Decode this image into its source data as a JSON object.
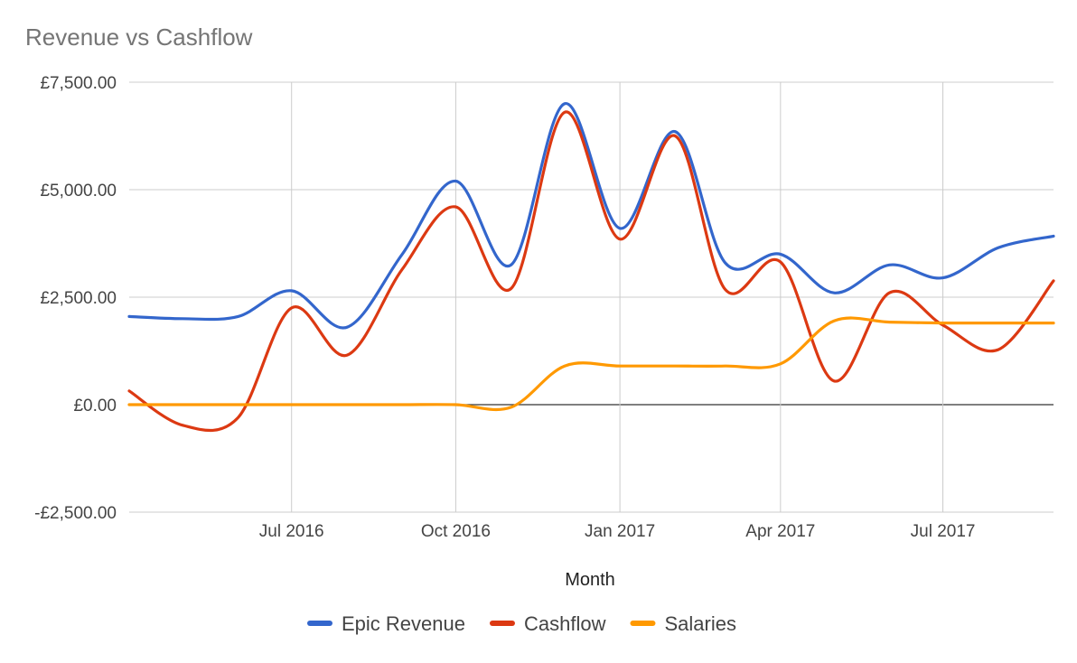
{
  "chart_data": {
    "type": "line",
    "title": "Revenue vs Cashflow",
    "xlabel": "Month",
    "ylabel": "",
    "ylim": [
      -2500,
      7500
    ],
    "y_ticks": [
      7500,
      5000,
      2500,
      0,
      -2500
    ],
    "y_tick_labels": [
      "£7,500.00",
      "£5,000.00",
      "£2,500.00",
      "£0.00",
      "-£2,500.00"
    ],
    "x_tick_labels": [
      {
        "x": "2016-07-01",
        "label": "Jul 2016"
      },
      {
        "x": "2016-10-01",
        "label": "Oct 2016"
      },
      {
        "x": "2017-01-01",
        "label": "Jan 2017"
      },
      {
        "x": "2017-04-01",
        "label": "Apr 2017"
      },
      {
        "x": "2017-07-01",
        "label": "Jul 2017"
      }
    ],
    "x_range": [
      "2016-04-01",
      "2017-09-01"
    ],
    "grid": true,
    "legend_position": "bottom",
    "x": [
      "2016-04-01",
      "2016-05-01",
      "2016-06-01",
      "2016-07-01",
      "2016-08-01",
      "2016-09-01",
      "2016-10-01",
      "2016-11-01",
      "2016-12-01",
      "2017-01-01",
      "2017-02-01",
      "2017-03-01",
      "2017-04-01",
      "2017-05-01",
      "2017-06-01",
      "2017-07-01",
      "2017-08-01",
      "2017-09-01"
    ],
    "series": [
      {
        "name": "Epic Revenue",
        "color": "#3366cc",
        "values": [
          2050,
          2000,
          2050,
          2650,
          1800,
          3500,
          5200,
          3250,
          7000,
          4100,
          6350,
          3300,
          3500,
          2600,
          3250,
          2950,
          3650,
          3920
        ]
      },
      {
        "name": "Cashflow",
        "color": "#dc3912",
        "values": [
          320,
          -480,
          -300,
          2250,
          1150,
          3150,
          4600,
          2700,
          6800,
          3850,
          6250,
          2680,
          3320,
          550,
          2600,
          1850,
          1280,
          2880
        ]
      },
      {
        "name": "Salaries",
        "color": "#ff9900",
        "values": [
          0,
          0,
          0,
          0,
          0,
          0,
          0,
          -60,
          900,
          900,
          900,
          900,
          950,
          1950,
          1920,
          1900,
          1900,
          1900
        ]
      }
    ]
  }
}
